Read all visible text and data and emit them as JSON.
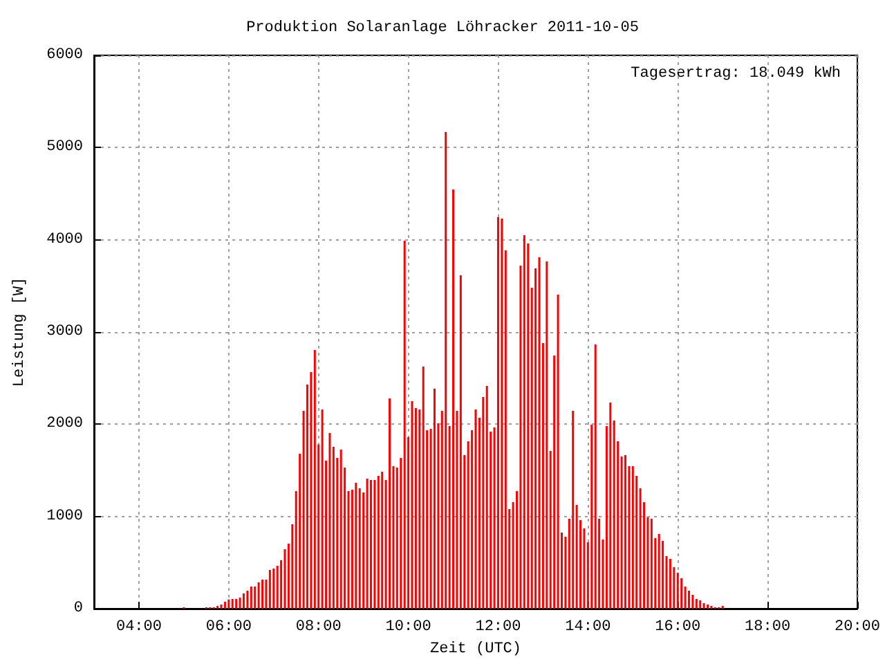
{
  "chart_data": {
    "type": "bar",
    "title": "Produktion Solaranlage Löhracker 2011-10-05",
    "xlabel": "Zeit (UTC)",
    "ylabel": "Leistung [W]",
    "annotations": [
      "Tagesertrag: 18.049 kWh"
    ],
    "x": [
      5.0,
      5.5,
      5.5833,
      5.6667,
      5.75,
      5.8333,
      5.9167,
      6,
      6.0833,
      6.1667,
      6.25,
      6.3333,
      6.4167,
      6.5,
      6.5833,
      6.6667,
      6.75,
      6.8333,
      6.9167,
      7,
      7.0833,
      7.1667,
      7.25,
      7.3333,
      7.4167,
      7.5,
      7.5833,
      7.6667,
      7.75,
      7.8333,
      7.9167,
      8,
      8.0833,
      8.1667,
      8.25,
      8.3333,
      8.4167,
      8.5,
      8.5833,
      8.6667,
      8.75,
      8.8333,
      8.9167,
      9,
      9.0833,
      9.1667,
      9.25,
      9.3333,
      9.4167,
      9.5,
      9.5833,
      9.6667,
      9.75,
      9.8333,
      9.9167,
      10,
      10.0833,
      10.1667,
      10.25,
      10.3333,
      10.4167,
      10.5,
      10.5833,
      10.6667,
      10.75,
      10.8333,
      10.9167,
      11,
      11.0833,
      11.1667,
      11.25,
      11.3333,
      11.4167,
      11.5,
      11.5833,
      11.6667,
      11.75,
      11.8333,
      11.9167,
      12,
      12.0833,
      12.1667,
      12.25,
      12.3333,
      12.4167,
      12.5,
      12.5833,
      12.6667,
      12.75,
      12.8333,
      12.9167,
      13,
      13.0833,
      13.1667,
      13.25,
      13.3333,
      13.4167,
      13.5,
      13.5833,
      13.6667,
      13.75,
      13.8333,
      13.9167,
      14,
      14.0833,
      14.1667,
      14.25,
      14.3333,
      14.4167,
      14.5,
      14.5833,
      14.6667,
      14.75,
      14.8333,
      14.9167,
      15,
      15.0833,
      15.1667,
      15.25,
      15.3333,
      15.4167,
      15.5,
      15.5833,
      15.6667,
      15.75,
      15.8333,
      15.9167,
      16,
      16.0833,
      16.1667,
      16.25,
      16.3333,
      16.4167,
      16.5,
      16.5833,
      16.6667,
      16.75,
      16.8333,
      16.9167,
      17
    ],
    "series": [
      {
        "color": "#ff0000",
        "values": [
          15,
          15,
          15,
          15,
          30,
          45,
          75,
          100,
          105,
          105,
          120,
          165,
          195,
          240,
          240,
          285,
          315,
          315,
          420,
          435,
          465,
          525,
          645,
          705,
          915,
          1275,
          1680,
          2145,
          2430,
          2565,
          2805,
          1780,
          2160,
          1605,
          1905,
          1755,
          1635,
          1725,
          1530,
          1275,
          1290,
          1365,
          1305,
          1260,
          1410,
          1395,
          1395,
          1440,
          1485,
          1395,
          2280,
          1545,
          1530,
          1635,
          3990,
          1860,
          2250,
          2175,
          2160,
          2625,
          1935,
          1950,
          2385,
          2010,
          2145,
          5170,
          1980,
          4545,
          2145,
          3615,
          1665,
          1815,
          1935,
          2160,
          2070,
          2295,
          2415,
          1920,
          1965,
          4245,
          4230,
          3885,
          1080,
          1155,
          1275,
          3720,
          4050,
          3960,
          3480,
          3690,
          3810,
          2880,
          3765,
          1710,
          2745,
          3405,
          825,
          780,
          975,
          2145,
          1125,
          960,
          870,
          720,
          1995,
          2865,
          975,
          750,
          1980,
          2235,
          2040,
          1815,
          1650,
          1665,
          1545,
          1545,
          1440,
          1305,
          1155,
          990,
          975,
          765,
          810,
          735,
          570,
          540,
          450,
          390,
          330,
          240,
          195,
          150,
          105,
          90,
          60,
          45,
          30,
          15,
          15,
          30
        ]
      }
    ],
    "xlim": [
      3,
      20
    ],
    "xticks": [
      {
        "value": 4,
        "label": "04:00"
      },
      {
        "value": 6,
        "label": "06:00"
      },
      {
        "value": 8,
        "label": "08:00"
      },
      {
        "value": 10,
        "label": "10:00"
      },
      {
        "value": 12,
        "label": "12:00"
      },
      {
        "value": 14,
        "label": "14:00"
      },
      {
        "value": 16,
        "label": "16:00"
      },
      {
        "value": 18,
        "label": "18:00"
      },
      {
        "value": 20,
        "label": "20:00"
      }
    ],
    "ylim": [
      0,
      6000
    ],
    "yticks": [
      0,
      1000,
      2000,
      3000,
      4000,
      5000,
      6000
    ],
    "grid": true
  }
}
